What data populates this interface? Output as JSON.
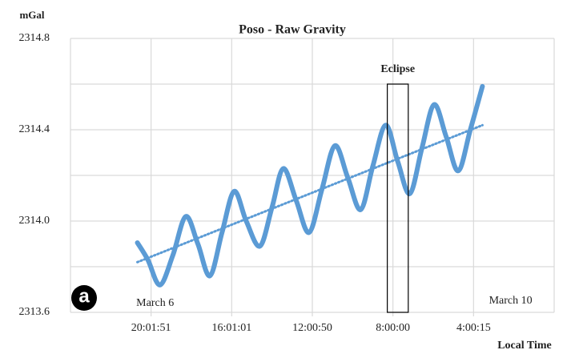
{
  "chart_data": {
    "type": "line",
    "title": "Poso - Raw Gravity",
    "y_label": "mGal",
    "x_label": "Local Time",
    "panel_label": "a",
    "xlim": [
      0,
      6
    ],
    "xticks": [
      {
        "value": 1,
        "label": "20:01:51"
      },
      {
        "value": 2,
        "label": "16:01:01"
      },
      {
        "value": 3,
        "label": "12:00:50"
      },
      {
        "value": 4,
        "label": "8:00:00"
      },
      {
        "value": 5,
        "label": "4:00:15"
      }
    ],
    "x_grid": [
      0,
      1,
      2,
      3,
      4,
      5,
      6
    ],
    "ylim": [
      2313.6,
      2314.8
    ],
    "yticks": [
      {
        "value": 2313.6,
        "label": "2313.6"
      },
      {
        "value": 2314.0,
        "label": "2314.0"
      },
      {
        "value": 2314.4,
        "label": "2314.4"
      },
      {
        "value": 2314.8,
        "label": "2314.8"
      }
    ],
    "y_grid": [
      2313.8,
      2314.2,
      2314.6
    ],
    "grid": true,
    "series": [
      {
        "name": "Raw Gravity",
        "color": "#5b9bd5",
        "style": "solid",
        "x": [
          0.83,
          0.96,
          1.11,
          1.27,
          1.43,
          1.58,
          1.73,
          1.88,
          2.03,
          2.18,
          2.35,
          2.5,
          2.64,
          2.8,
          2.96,
          3.12,
          3.28,
          3.44,
          3.6,
          3.75,
          3.91,
          4.06,
          4.21,
          4.36,
          4.51,
          4.66,
          4.81,
          4.96,
          5.11
        ],
        "values": [
          2313.905,
          2313.83,
          2313.72,
          2313.85,
          2314.02,
          2313.9,
          2313.76,
          2313.95,
          2314.13,
          2314.0,
          2313.89,
          2314.06,
          2314.23,
          2314.09,
          2313.95,
          2314.14,
          2314.33,
          2314.19,
          2314.05,
          2314.24,
          2314.42,
          2314.26,
          2314.12,
          2314.32,
          2314.51,
          2314.37,
          2314.22,
          2314.4,
          2314.59
        ]
      },
      {
        "name": "Trend",
        "color": "#5b9bd5",
        "style": "dotted",
        "x": [
          0.83,
          5.11
        ],
        "values": [
          2313.82,
          2314.42
        ]
      }
    ],
    "eclipse": {
      "label": "Eclipse",
      "x": [
        3.93,
        4.19
      ],
      "y": [
        2313.6,
        2314.6
      ]
    },
    "annotations": [
      {
        "text": "March 6",
        "x": 1.05,
        "y": 2313.64
      },
      {
        "text": "March 10",
        "x": 5.46,
        "y": 2313.65
      }
    ]
  }
}
